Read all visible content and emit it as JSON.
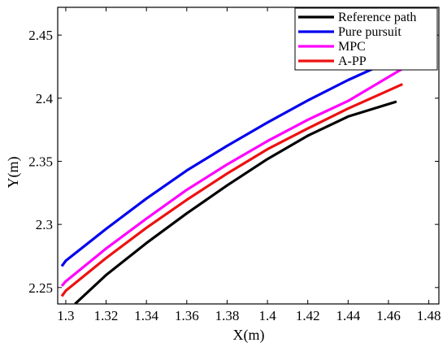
{
  "chart_data": {
    "type": "line",
    "title": "",
    "xlabel": "X(m)",
    "ylabel": "Y(m)",
    "xlim": [
      1.296,
      1.485
    ],
    "ylim": [
      2.237,
      2.472
    ],
    "xticks": [
      1.3,
      1.32,
      1.34,
      1.36,
      1.38,
      1.4,
      1.42,
      1.44,
      1.46,
      1.48
    ],
    "yticks": [
      2.25,
      2.3,
      2.35,
      2.4,
      2.45
    ],
    "xtick_labels": [
      "1.3",
      "1.32",
      "1.34",
      "1.36",
      "1.38",
      "1.4",
      "1.42",
      "1.44",
      "1.46",
      "1.48"
    ],
    "ytick_labels": [
      "2.25",
      "2.3",
      "2.35",
      "2.4",
      "2.45"
    ],
    "grid": false,
    "legend_position": "top-right",
    "series": [
      {
        "name": "Reference path",
        "color": "#000000",
        "x": [
          1.3046,
          1.32,
          1.34,
          1.36,
          1.38,
          1.4,
          1.42,
          1.44,
          1.464
        ],
        "y": [
          2.237,
          2.2599,
          2.2852,
          2.3087,
          2.3309,
          2.3518,
          2.3703,
          2.3855,
          2.3973
        ]
      },
      {
        "name": "Pure pursuit",
        "color": "#0000ee",
        "x": [
          1.298,
          1.3,
          1.32,
          1.34,
          1.36,
          1.38,
          1.4,
          1.42,
          1.44,
          1.465
        ],
        "y": [
          2.2669,
          2.2712,
          2.2965,
          2.3205,
          2.3427,
          2.3622,
          2.3807,
          2.3982,
          2.4144,
          2.4325
        ]
      },
      {
        "name": "MPC",
        "color": "#ff00ff",
        "x": [
          1.298,
          1.3,
          1.32,
          1.34,
          1.36,
          1.38,
          1.4,
          1.42,
          1.44,
          1.467
        ],
        "y": [
          2.2512,
          2.2549,
          2.2809,
          2.3046,
          2.3274,
          2.3475,
          2.366,
          2.3829,
          2.3978,
          2.4234
        ]
      },
      {
        "name": "A-PP",
        "color": "#ee1111",
        "x": [
          1.298,
          1.3,
          1.32,
          1.34,
          1.36,
          1.38,
          1.4,
          1.42,
          1.44,
          1.467
        ],
        "y": [
          2.2431,
          2.2474,
          2.2734,
          2.2973,
          2.3195,
          2.3403,
          2.3596,
          2.376,
          2.3918,
          2.4111
        ]
      }
    ]
  }
}
